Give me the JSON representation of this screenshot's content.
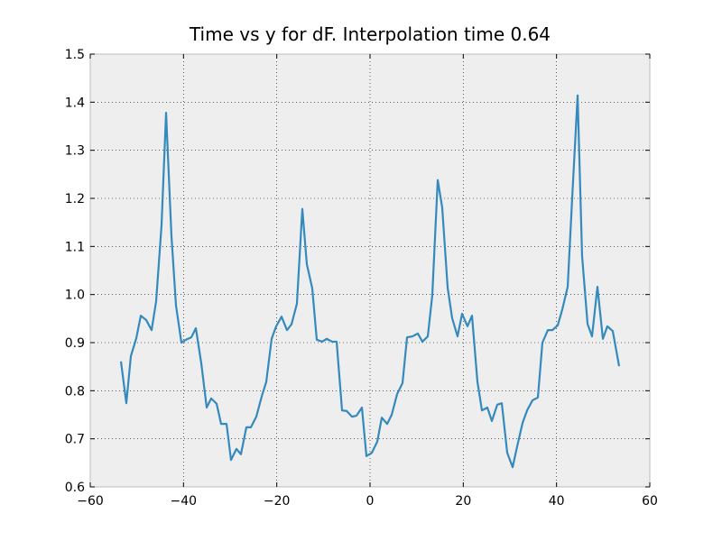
{
  "chart_data": {
    "type": "line",
    "title": "Time vs y for dF. Interpolation time 0.64",
    "x": [
      -53.42,
      -52.26,
      -51.29,
      -50.13,
      -49.16,
      -48.0,
      -46.84,
      -45.87,
      -44.71,
      -43.74,
      -42.58,
      -41.61,
      -40.45,
      -39.48,
      -38.32,
      -37.35,
      -36.19,
      -35.03,
      -34.06,
      -32.9,
      -31.94,
      -30.77,
      -29.81,
      -28.65,
      -27.68,
      -26.52,
      -25.55,
      -24.39,
      -23.23,
      -22.26,
      -21.1,
      -20.13,
      -18.97,
      -17.81,
      -16.84,
      -15.68,
      -14.52,
      -13.55,
      -12.39,
      -11.42,
      -10.26,
      -9.29,
      -8.13,
      -7.16,
      -6.0,
      -5.03,
      -3.87,
      -2.9,
      -1.74,
      -0.77,
      0.39,
      1.55,
      2.52,
      3.68,
      4.65,
      5.81,
      6.97,
      7.94,
      9.1,
      10.26,
      11.23,
      12.39,
      13.35,
      14.52,
      15.48,
      16.65,
      17.61,
      18.77,
      19.74,
      20.9,
      21.87,
      23.03,
      24.0,
      25.16,
      26.13,
      27.29,
      28.26,
      29.42,
      30.58,
      31.55,
      32.71,
      33.68,
      34.84,
      36.0,
      36.97,
      38.13,
      39.1,
      40.26,
      41.23,
      42.39,
      43.35,
      44.52,
      45.48,
      46.65,
      47.61,
      48.77,
      49.94,
      50.9,
      52.06,
      53.42
    ],
    "series": [
      {
        "color": "#348abd",
        "values": [
          0.861,
          0.774,
          0.872,
          0.909,
          0.956,
          0.947,
          0.926,
          0.986,
          1.144,
          1.378,
          1.121,
          0.977,
          0.9,
          0.906,
          0.911,
          0.93,
          0.857,
          0.765,
          0.784,
          0.773,
          0.731,
          0.731,
          0.656,
          0.679,
          0.668,
          0.724,
          0.724,
          0.746,
          0.788,
          0.818,
          0.908,
          0.934,
          0.954,
          0.926,
          0.938,
          0.981,
          1.178,
          1.063,
          1.013,
          0.906,
          0.902,
          0.908,
          0.902,
          0.902,
          0.759,
          0.758,
          0.746,
          0.748,
          0.765,
          0.664,
          0.671,
          0.694,
          0.744,
          0.731,
          0.75,
          0.793,
          0.816,
          0.911,
          0.913,
          0.919,
          0.902,
          0.913,
          0.998,
          1.238,
          1.181,
          1.014,
          0.951,
          0.913,
          0.96,
          0.934,
          0.956,
          0.819,
          0.759,
          0.765,
          0.737,
          0.771,
          0.774,
          0.671,
          0.641,
          0.684,
          0.733,
          0.759,
          0.78,
          0.786,
          0.9,
          0.926,
          0.926,
          0.936,
          0.969,
          1.016,
          1.2,
          1.414,
          1.08,
          0.939,
          0.913,
          1.016,
          0.908,
          0.934,
          0.924,
          0.851
        ]
      }
    ],
    "xlim": [
      -60,
      60
    ],
    "xticks": [
      {
        "value": -60,
        "label": "−60"
      },
      {
        "value": -40,
        "label": "−40"
      },
      {
        "value": -20,
        "label": "−20"
      },
      0,
      20,
      40,
      60
    ],
    "ylim": [
      0.6,
      1.5
    ],
    "yticks": [
      0.6,
      0.7,
      0.8,
      0.9,
      {
        "value": 1.0,
        "label": "1.0"
      },
      1.1,
      1.2,
      1.3,
      1.4,
      1.5
    ],
    "grid": true
  }
}
